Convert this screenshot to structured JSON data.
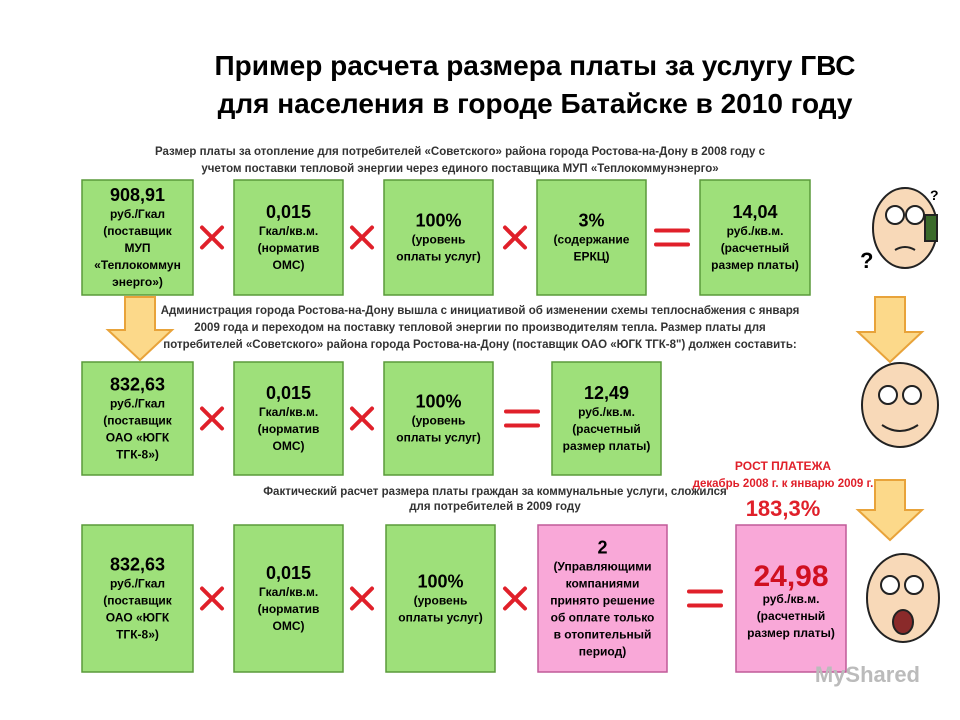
{
  "title": [
    "Пример расчета размера платы за услугу ГВС",
    "для населения в городе Батайске в 2010 году"
  ],
  "rows": [
    {
      "caption": [
        "Размер платы за отопление для потребителей «Советского» района города Ростова-на-Дону в 2008 году с",
        "учетом поставки тепловой энергии через единого поставщика МУП «Теплокоммунэнерго»"
      ],
      "boxes": [
        {
          "value": "908,91",
          "lines": [
            "руб./Гкал",
            "(поставщик",
            "МУП",
            "«Теплокоммун",
            "энерго»)"
          ]
        },
        {
          "value": "0,015",
          "lines": [
            "Гкал/кв.м.",
            "(норматив",
            "ОМС)"
          ]
        },
        {
          "value": "100%",
          "lines": [
            "(уровень",
            "оплаты услуг)"
          ]
        },
        {
          "value": "3%",
          "lines": [
            "(содержание",
            "ЕРКЦ)"
          ]
        },
        {
          "value": "14,04",
          "lines": [
            "руб./кв.м.",
            "(расчетный",
            "размер платы)"
          ]
        }
      ]
    },
    {
      "caption": [
        "Администрация города Ростова-на-Дону вышла с инициативой об изменении схемы теплоснабжения с января",
        "2009 года и переходом на поставку тепловой энергии по производителям тепла. Размер платы для",
        "потребителей «Советского» района города Ростова-на-Дону (поставщик ОАО «ЮГК ТГК-8\") должен составить:"
      ],
      "boxes": [
        {
          "value": "832,63",
          "lines": [
            "руб./Гкал",
            "(поставщик",
            "ОАО «ЮГК",
            "ТГК-8»)"
          ]
        },
        {
          "value": "0,015",
          "lines": [
            "Гкал/кв.м.",
            "(норматив",
            "ОМС)"
          ]
        },
        {
          "value": "100%",
          "lines": [
            "(уровень",
            "оплаты услуг)"
          ]
        },
        {
          "value": "12,49",
          "lines": [
            "руб./кв.м.",
            "(расчетный",
            "размер платы)"
          ]
        }
      ]
    },
    {
      "caption": [
        "Фактический расчет размера платы граждан за коммунальные услуги, сложился",
        "для потребителей в 2009 году"
      ],
      "boxes": [
        {
          "value": "832,63",
          "lines": [
            "руб./Гкал",
            "(поставщик",
            "ОАО «ЮГК",
            "ТГК-8»)"
          ]
        },
        {
          "value": "0,015",
          "lines": [
            "Гкал/кв.м.",
            "(норматив",
            "ОМС)"
          ]
        },
        {
          "value": "100%",
          "lines": [
            "(уровень",
            "оплаты услуг)"
          ]
        },
        {
          "value": "2",
          "lines": [
            "(Управляющими",
            "компаниями",
            "принято решение",
            "об оплате только",
            "в отопительный",
            "период)"
          ]
        },
        {
          "value": "24,98",
          "lines": [
            "руб./кв.м.",
            "(расчетный",
            "размер платы)"
          ]
        }
      ]
    }
  ],
  "growth": {
    "label": "РОСТ ПЛАТЕЖА",
    "period": "декабрь 2008 г. к январю 2009 г.",
    "value": "183,3%"
  },
  "watermark": "MyShared"
}
